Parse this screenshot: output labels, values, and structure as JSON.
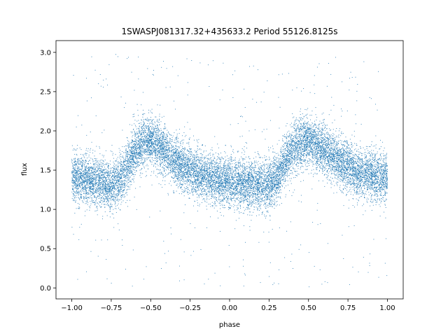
{
  "chart_data": {
    "type": "scatter",
    "title": "1SWASPJ081317.32+435633.2 Period 55126.8125s",
    "xlabel": "phase",
    "ylabel": "flux",
    "xlim": [
      -1.1,
      1.1
    ],
    "ylim": [
      -0.14,
      3.15
    ],
    "xticks": [
      -1.0,
      -0.75,
      -0.5,
      -0.25,
      0.0,
      0.25,
      0.5,
      0.75,
      1.0
    ],
    "xtick_labels": [
      "−1.00",
      "−0.75",
      "−0.50",
      "−0.25",
      "0.00",
      "0.25",
      "0.50",
      "0.75",
      "1.00"
    ],
    "yticks": [
      0.0,
      0.5,
      1.0,
      1.5,
      2.0,
      2.5,
      3.0
    ],
    "ytick_labels": [
      "0.0",
      "0.5",
      "1.0",
      "1.5",
      "2.0",
      "2.5",
      "3.0"
    ],
    "grid": false,
    "legend": "none",
    "marker_color": "#1f77b4",
    "series": [
      {
        "phase_range": [
          -1.0,
          1.0
        ],
        "flux_range": [
          0.0,
          3.0
        ],
        "phase": [
          -1.0,
          -0.9,
          -0.8,
          -0.75,
          -0.7,
          -0.65,
          -0.6,
          -0.55,
          -0.5,
          -0.45,
          -0.4,
          -0.35,
          -0.3,
          -0.25,
          -0.2,
          -0.15,
          -0.1,
          -0.05,
          0.0,
          0.05,
          0.1,
          0.15,
          0.2,
          0.25,
          0.3,
          0.35,
          0.4,
          0.45,
          0.5,
          0.55,
          0.6,
          0.65,
          0.7,
          0.75,
          0.8,
          0.85,
          0.9,
          0.95,
          1.0
        ],
        "median_flux": [
          1.4,
          1.38,
          1.33,
          1.3,
          1.35,
          1.55,
          1.75,
          1.85,
          1.88,
          1.82,
          1.72,
          1.62,
          1.55,
          1.5,
          1.46,
          1.42,
          1.38,
          1.36,
          1.35,
          1.34,
          1.32,
          1.3,
          1.3,
          1.33,
          1.4,
          1.6,
          1.78,
          1.85,
          1.88,
          1.82,
          1.75,
          1.68,
          1.6,
          1.55,
          1.5,
          1.47,
          1.44,
          1.42,
          1.4
        ],
        "spread": 0.28
      }
    ]
  }
}
